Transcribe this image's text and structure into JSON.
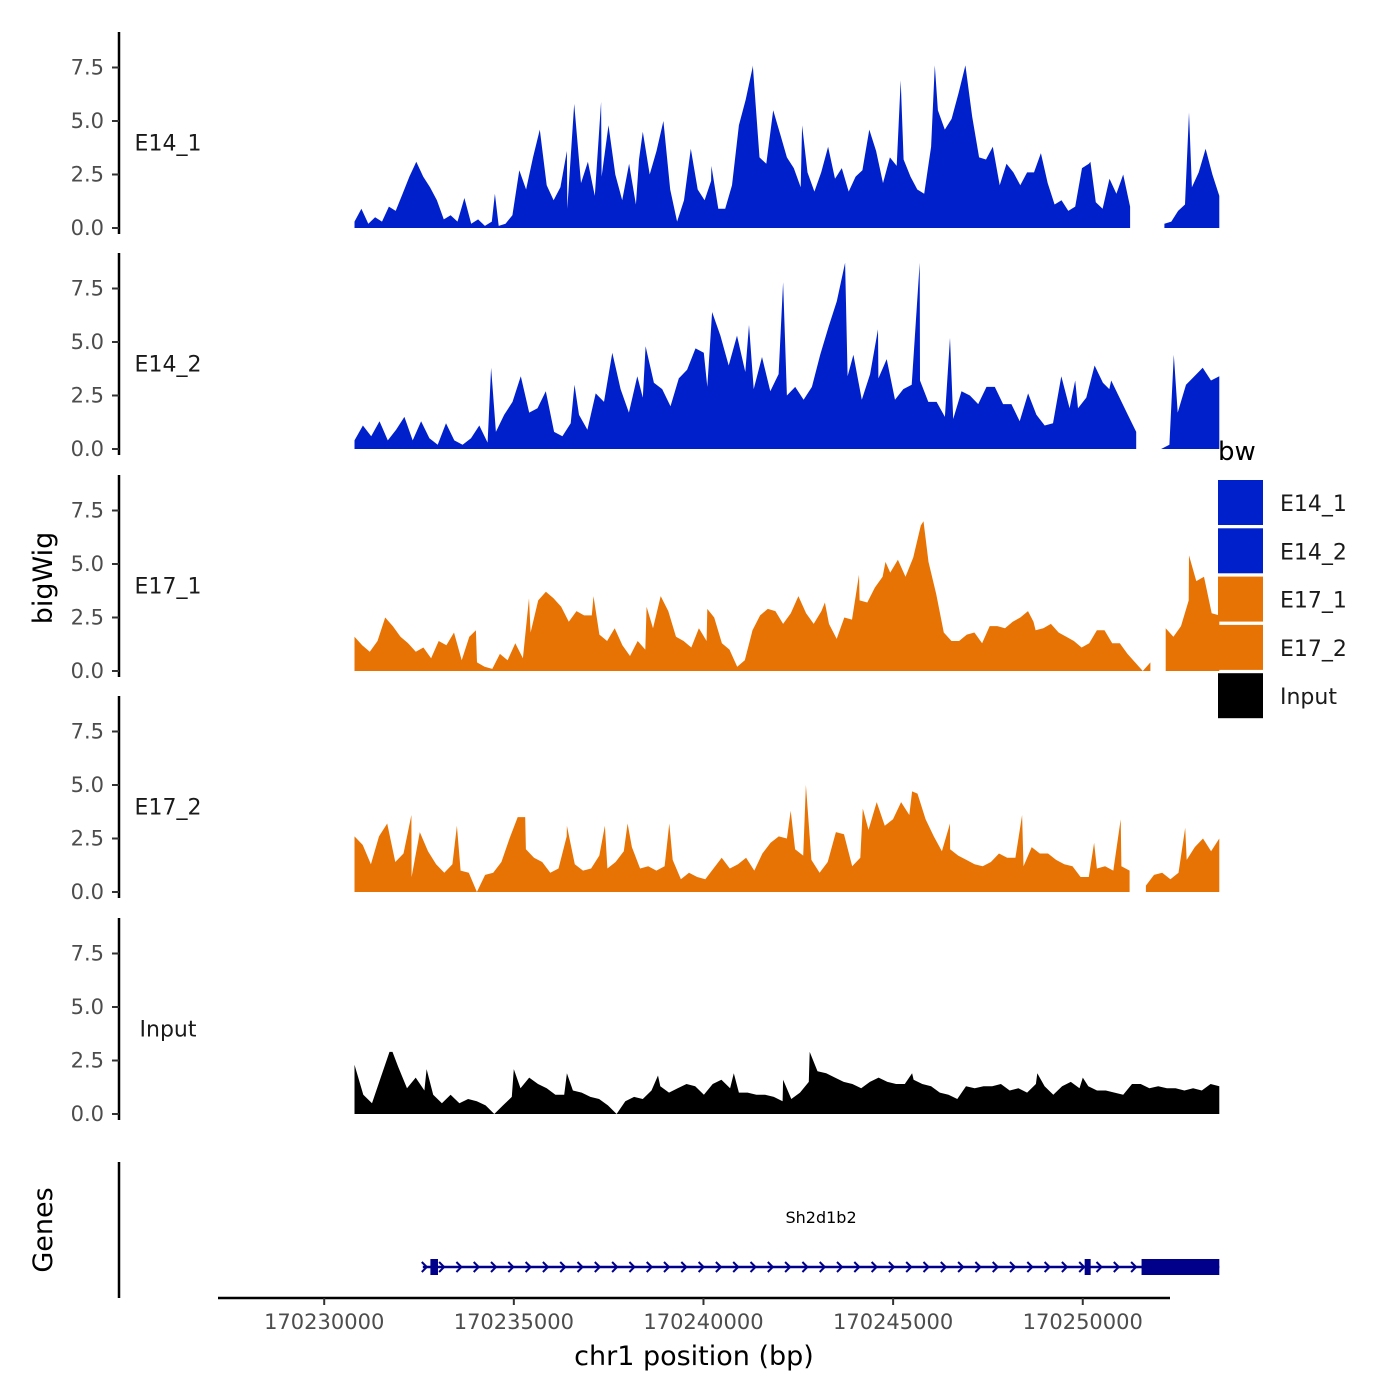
{
  "chart_data": {
    "type": "area",
    "title": "",
    "ylabel": "bigWig",
    "xlabel": "chr1 position (bp)",
    "genes_label": "Genes",
    "chromosome": "chr1",
    "xlim": [
      170227200,
      170252300
    ],
    "ylim": [
      0,
      9.2
    ],
    "x_ticks": [
      170230000,
      170235000,
      170240000,
      170245000,
      170250000
    ],
    "x_tick_labels": [
      "170230000",
      "170235000",
      "170240000",
      "170245000",
      "170250000"
    ],
    "y_ticks": [
      0,
      2.5,
      5.0,
      7.5
    ],
    "y_tick_labels": [
      "0.0",
      "2.5",
      "5.0",
      "7.5"
    ],
    "track_start": 170230800,
    "track_end": 170253600,
    "series": [
      {
        "name": "E14_1",
        "color": "#0020CC",
        "gaps": [
          [
            170251300,
            170252000
          ]
        ],
        "values": [
          0.3,
          0.9,
          0.2,
          0.5,
          0.3,
          1.0,
          0.8,
          1.6,
          2.4,
          3.1,
          2.4,
          1.9,
          1.3,
          0.4,
          0.6,
          0.3,
          1.4,
          0.2,
          0.4,
          0.1,
          0.3,
          0.1,
          0.2,
          0.6,
          2.7,
          1.8,
          3.3,
          4.6,
          2.0,
          1.3,
          1.9,
          0.9,
          5.8,
          2.1,
          3.1,
          1.5,
          2.4,
          4.8,
          2.5,
          1.3,
          3.0,
          1.1,
          4.5,
          2.5,
          3.6,
          5.0,
          1.8,
          0.3,
          1.3,
          3.7,
          1.8,
          1.3,
          2.9,
          0.9,
          0.9,
          2.0,
          4.8,
          6.0,
          7.5,
          3.3,
          3.0,
          5.5,
          4.4,
          3.3,
          2.8,
          1.9,
          2.6,
          1.7,
          2.6,
          3.8,
          2.3,
          2.8,
          1.7,
          2.4,
          2.7,
          4.6,
          3.6,
          2.1,
          3.3,
          2.9,
          3.2,
          2.4,
          1.8,
          1.6,
          3.8,
          5.5,
          4.6,
          5.1,
          6.3,
          7.6,
          5.2,
          3.3,
          3.2,
          3.8,
          2.0,
          3.0,
          2.6,
          2.0,
          2.6,
          2.6,
          3.5,
          2.1,
          1.1,
          1.3,
          0.8,
          1.0,
          2.8,
          3.0,
          1.2,
          0.9,
          2.3,
          1.6,
          2.5,
          1.0,
          0.2,
          0.1,
          0.2,
          0.1,
          0.2,
          0.3,
          0.8,
          1.1,
          1.9,
          2.6,
          3.7,
          2.5,
          1.5
        ],
        "peaks": [
          [
            170234500,
            1.6
          ],
          [
            170236400,
            3.6
          ],
          [
            170237300,
            5.9
          ],
          [
            170238300,
            3.2
          ],
          [
            170240200,
            2.2
          ],
          [
            170241300,
            7.6
          ],
          [
            170242600,
            4.8
          ],
          [
            170245200,
            6.9
          ],
          [
            170246100,
            7.6
          ],
          [
            170250200,
            3.1
          ],
          [
            170252800,
            5.4
          ]
        ]
      },
      {
        "name": "E14_2",
        "color": "#0020CC",
        "gaps": [
          [
            170251600,
            170252000
          ]
        ],
        "values": [
          0.4,
          1.1,
          0.6,
          1.3,
          0.4,
          0.9,
          1.5,
          0.4,
          1.3,
          0.5,
          0.2,
          1.2,
          0.4,
          0.2,
          0.5,
          1.1,
          0.3,
          0.8,
          1.6,
          2.2,
          3.4,
          1.7,
          1.9,
          2.7,
          0.8,
          0.6,
          1.2,
          1.6,
          0.9,
          2.6,
          2.2,
          4.5,
          2.8,
          1.7,
          3.4,
          4.8,
          3.1,
          2.8,
          2.0,
          3.3,
          3.7,
          4.7,
          4.5,
          6.4,
          5.3,
          3.9,
          5.3,
          3.6,
          2.8,
          4.3,
          2.7,
          3.5,
          2.5,
          2.9,
          2.3,
          2.9,
          4.4,
          5.7,
          6.9,
          8.7,
          4.4,
          2.3,
          3.5,
          3.3,
          4.2,
          2.3,
          2.8,
          3.0,
          3.2,
          2.2,
          2.2,
          1.5,
          1.4,
          2.7,
          2.5,
          2.1,
          2.9,
          2.9,
          2.1,
          2.1,
          1.3,
          2.6,
          1.6,
          1.1,
          1.2,
          3.4,
          1.9,
          1.9,
          2.4,
          3.9,
          3.1,
          3.2,
          2.4,
          1.6,
          0.8,
          0.6,
          0.4,
          0.0,
          0.2,
          1.7,
          3.0,
          3.4,
          3.8,
          3.2,
          3.4
        ],
        "peaks": [
          [
            170234400,
            3.8
          ],
          [
            170236600,
            3.0
          ],
          [
            170238400,
            2.4
          ],
          [
            170240100,
            2.9
          ],
          [
            170241200,
            5.8
          ],
          [
            170242100,
            7.8
          ],
          [
            170243800,
            3.4
          ],
          [
            170244600,
            5.6
          ],
          [
            170245700,
            8.7
          ],
          [
            170246500,
            5.2
          ],
          [
            170249800,
            3.2
          ],
          [
            170250700,
            2.8
          ],
          [
            170252400,
            4.4
          ]
        ]
      },
      {
        "name": "E17_1",
        "color": "#E87305",
        "gaps": [
          [
            170251900,
            170252100
          ]
        ],
        "values": [
          1.6,
          1.2,
          0.9,
          1.4,
          2.5,
          2.1,
          1.6,
          1.3,
          0.9,
          1.1,
          0.6,
          1.4,
          1.2,
          1.8,
          0.5,
          1.6,
          0.4,
          0.2,
          0.1,
          0.8,
          0.5,
          1.3,
          0.6,
          1.8,
          3.3,
          3.7,
          3.4,
          3.0,
          2.3,
          2.8,
          2.6,
          2.6,
          1.7,
          1.4,
          2.0,
          1.2,
          0.7,
          1.4,
          1.0,
          2.0,
          3.5,
          2.8,
          1.6,
          1.4,
          1.1,
          2.0,
          1.4,
          2.5,
          1.3,
          1.0,
          0.2,
          0.5,
          1.9,
          2.6,
          2.9,
          2.8,
          2.2,
          2.7,
          3.5,
          2.7,
          2.2,
          2.8,
          2.2,
          1.5,
          2.5,
          2.4,
          3.3,
          3.2,
          3.9,
          4.4,
          4.6,
          5.2,
          4.4,
          5.3,
          6.8,
          5.1,
          3.6,
          1.8,
          1.4,
          1.4,
          1.7,
          1.8,
          1.3,
          2.1,
          2.1,
          2.0,
          2.3,
          2.5,
          2.8,
          1.9,
          2.0,
          2.2,
          1.8,
          1.6,
          1.4,
          1.1,
          1.3,
          1.9,
          1.9,
          1.3,
          1.3,
          0.8,
          0.4,
          0.0,
          0.4,
          1.1,
          2.0,
          1.6,
          2.1,
          3.3,
          4.2,
          4.4,
          2.7,
          2.6
        ],
        "peaks": [
          [
            170234000,
            1.9
          ],
          [
            170235400,
            3.4
          ],
          [
            170237100,
            3.5
          ],
          [
            170238500,
            3.0
          ],
          [
            170240100,
            2.9
          ],
          [
            170243200,
            3.2
          ],
          [
            170244100,
            4.5
          ],
          [
            170244800,
            5.1
          ],
          [
            170245800,
            7.0
          ],
          [
            170248700,
            2.3
          ],
          [
            170252800,
            5.4
          ]
        ]
      },
      {
        "name": "E17_2",
        "color": "#E87305",
        "gaps": [
          [
            170251300,
            170251650
          ]
        ],
        "values": [
          1.5,
          2.2,
          1.3,
          2.6,
          3.2,
          1.4,
          1.8,
          0.7,
          2.8,
          1.9,
          1.3,
          0.9,
          1.3,
          1.0,
          0.9,
          0.0,
          0.8,
          0.9,
          1.4,
          2.5,
          3.5,
          2.0,
          1.6,
          1.4,
          0.9,
          1.1,
          2.6,
          1.3,
          1.0,
          1.1,
          1.7,
          1.1,
          1.4,
          1.9,
          2.1,
          1.1,
          1.2,
          1.0,
          1.2,
          1.5,
          0.6,
          0.9,
          0.7,
          0.6,
          1.1,
          1.6,
          1.1,
          1.3,
          1.6,
          1.0,
          1.8,
          2.3,
          2.6,
          2.5,
          2.0,
          1.7,
          1.5,
          0.9,
          1.4,
          2.8,
          2.7,
          1.2,
          1.6,
          2.9,
          4.2,
          3.1,
          3.4,
          4.2,
          3.6,
          4.6,
          3.4,
          2.6,
          1.9,
          2.0,
          1.7,
          1.5,
          1.3,
          1.2,
          1.4,
          1.8,
          1.6,
          1.6,
          1.2,
          2.1,
          1.8,
          1.8,
          1.5,
          1.3,
          1.2,
          0.7,
          0.7,
          1.1,
          1.2,
          1.0,
          1.2,
          1.0,
          0.5,
          0.3,
          0.8,
          0.9,
          0.6,
          0.9,
          1.5,
          2.1,
          2.5,
          1.9,
          2.5
        ],
        "peaks": [
          [
            170230800,
            2.6
          ],
          [
            170232300,
            3.6
          ],
          [
            170233500,
            3.1
          ],
          [
            170235300,
            3.5
          ],
          [
            170236400,
            3.1
          ],
          [
            170237400,
            3.1
          ],
          [
            170238000,
            3.2
          ],
          [
            170239100,
            3.2
          ],
          [
            170242300,
            3.8
          ],
          [
            170242700,
            5.0
          ],
          [
            170244200,
            3.9
          ],
          [
            170245500,
            4.7
          ],
          [
            170246500,
            3.2
          ],
          [
            170248400,
            3.6
          ],
          [
            170250300,
            2.3
          ],
          [
            170251000,
            3.4
          ],
          [
            170252700,
            3.0
          ]
        ]
      },
      {
        "name": "Input",
        "color": "#000000",
        "gaps": [],
        "values": [
          1.2,
          0.9,
          0.5,
          1.7,
          2.9,
          2.2,
          1.2,
          1.7,
          1.1,
          0.9,
          0.5,
          0.9,
          0.5,
          0.7,
          0.6,
          0.4,
          0.0,
          0.4,
          0.8,
          1.2,
          1.7,
          1.4,
          1.2,
          0.9,
          0.9,
          1.1,
          1.0,
          0.8,
          0.7,
          0.4,
          0.0,
          0.6,
          0.8,
          0.7,
          1.1,
          1.3,
          1.0,
          1.2,
          1.4,
          1.3,
          0.9,
          1.4,
          1.6,
          1.2,
          1.0,
          1.0,
          0.9,
          0.9,
          0.8,
          0.6,
          0.7,
          1.0,
          1.5,
          2.0,
          1.9,
          1.7,
          1.5,
          1.4,
          1.2,
          1.5,
          1.7,
          1.5,
          1.4,
          1.4,
          1.6,
          1.4,
          1.3,
          1.0,
          0.9,
          0.7,
          1.3,
          1.2,
          1.3,
          1.3,
          1.4,
          1.1,
          1.2,
          1.0,
          1.4,
          1.3,
          0.9,
          1.3,
          1.5,
          1.2,
          1.3,
          1.1,
          1.1,
          1.0,
          0.9,
          1.4,
          1.4,
          1.2,
          1.3,
          1.2,
          1.2,
          1.1,
          1.2,
          1.1,
          1.4,
          1.3
        ],
        "peaks": [
          [
            170230800,
            2.3
          ],
          [
            170231800,
            2.9
          ],
          [
            170232700,
            2.1
          ],
          [
            170235000,
            2.1
          ],
          [
            170236400,
            1.9
          ],
          [
            170238800,
            1.8
          ],
          [
            170240800,
            1.9
          ],
          [
            170242100,
            1.6
          ],
          [
            170242800,
            2.9
          ],
          [
            170245500,
            1.9
          ],
          [
            170248800,
            1.9
          ],
          [
            170250000,
            1.7
          ]
        ]
      }
    ],
    "legend": {
      "title": "bw",
      "entries": [
        {
          "label": "E14_1",
          "color": "#0020CC"
        },
        {
          "label": "E14_2",
          "color": "#0020CC"
        },
        {
          "label": "E17_1",
          "color": "#E87305"
        },
        {
          "label": "E17_2",
          "color": "#E87305"
        },
        {
          "label": "Input",
          "color": "#000000"
        }
      ]
    },
    "gene": {
      "name": "Sh2d1b2",
      "strand": "+",
      "color": "#00008B",
      "start": 170232600,
      "end": 170253600,
      "exons": [
        [
          170232800,
          170233000
        ],
        [
          170250050,
          170250200
        ],
        [
          170251550,
          170253600
        ]
      ]
    }
  }
}
